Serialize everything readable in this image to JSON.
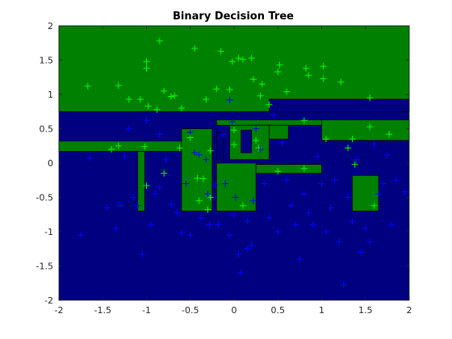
{
  "chart_data": {
    "type": "scatter",
    "title": "Binary Decision Tree",
    "xlabel": "",
    "ylabel": "",
    "xlim": [
      -2,
      2
    ],
    "ylim": [
      -2,
      2
    ],
    "xticks": [
      -2,
      -1.5,
      -1,
      -0.5,
      0,
      0.5,
      1,
      1.5,
      2
    ],
    "yticks": [
      -2,
      -1.5,
      -1,
      -0.5,
      0,
      0.5,
      1,
      1.5,
      2
    ],
    "xtick_labels": [
      "-2",
      "-1.5",
      "-1",
      "-0.5",
      "0",
      "0.5",
      "1",
      "1.5",
      "2"
    ],
    "ytick_labels": [
      "-2",
      "-1.5",
      "-1",
      "-0.5",
      "0",
      "0.5",
      "1",
      "1.5",
      "2"
    ],
    "grid": false,
    "colors": {
      "background_region": "#000080",
      "positive_region": "#008000",
      "region_edge": "#000000",
      "marker_blue": "#0000ff",
      "marker_green": "#00ff00"
    },
    "decision_regions": [
      {
        "class": "green",
        "x": [
          -2,
          2
        ],
        "y": [
          0.75,
          2
        ]
      },
      {
        "class": "blue",
        "x": [
          0.4,
          2
        ],
        "y": [
          0.75,
          0.93
        ]
      },
      {
        "class": "green",
        "x": [
          -2,
          -0.6
        ],
        "y": [
          0.17,
          0.32
        ]
      },
      {
        "class": "green",
        "x": [
          -0.6,
          -0.25
        ],
        "y": [
          -0.7,
          0.5
        ]
      },
      {
        "class": "green",
        "x": [
          -1.1,
          -1.02
        ],
        "y": [
          -0.7,
          0.17
        ]
      },
      {
        "class": "green",
        "x": [
          -0.2,
          2
        ],
        "y": [
          0.55,
          0.63
        ]
      },
      {
        "class": "green",
        "x": [
          0.4,
          0.62
        ],
        "y": [
          0.35,
          0.55
        ]
      },
      {
        "class": "green",
        "x": [
          -0.05,
          0.4
        ],
        "y": [
          0.05,
          0.55
        ]
      },
      {
        "class": "green",
        "x": [
          -0.2,
          0.25
        ],
        "y": [
          -0.7,
          0.0
        ]
      },
      {
        "class": "green",
        "x": [
          0.25,
          1.0
        ],
        "y": [
          -0.15,
          -0.02
        ]
      },
      {
        "class": "green",
        "x": [
          1.0,
          2
        ],
        "y": [
          0.33,
          0.63
        ]
      },
      {
        "class": "green",
        "x": [
          1.35,
          1.65
        ],
        "y": [
          -0.7,
          -0.18
        ]
      },
      {
        "class": "blue",
        "x": [
          -0.2,
          -0.12
        ],
        "y": [
          0.0,
          0.45
        ]
      },
      {
        "class": "blue",
        "x": [
          0.08,
          0.2
        ],
        "y": [
          0.15,
          0.48
        ]
      }
    ],
    "series": [
      {
        "marker": "+",
        "color": "#00ff00",
        "points": [
          [
            -1.67,
            1.12
          ],
          [
            -1.32,
            1.13
          ],
          [
            -1.2,
            0.93
          ],
          [
            -1.07,
            0.93
          ],
          [
            -0.85,
            1.78
          ],
          [
            -1.0,
            1.48
          ],
          [
            -1.0,
            1.38
          ],
          [
            -0.98,
            0.83
          ],
          [
            -0.88,
            0.78
          ],
          [
            -0.8,
            1.05
          ],
          [
            -0.72,
            0.97
          ],
          [
            -0.68,
            0.98
          ],
          [
            -0.6,
            0.8
          ],
          [
            -0.45,
            1.67
          ],
          [
            -0.32,
            0.93
          ],
          [
            -0.2,
            1.08
          ],
          [
            -0.15,
            1.63
          ],
          [
            -0.05,
            1.07
          ],
          [
            -0.02,
            1.48
          ],
          [
            0.05,
            1.53
          ],
          [
            0.1,
            1.51
          ],
          [
            0.2,
            1.53
          ],
          [
            0.22,
            1.22
          ],
          [
            0.3,
            0.98
          ],
          [
            0.32,
            1.15
          ],
          [
            0.4,
            0.85
          ],
          [
            0.5,
            1.33
          ],
          [
            0.52,
            1.43
          ],
          [
            0.6,
            1.04
          ],
          [
            0.82,
            1.38
          ],
          [
            0.85,
            1.28
          ],
          [
            1.02,
            1.41
          ],
          [
            1.02,
            1.23
          ],
          [
            1.22,
            1.18
          ],
          [
            1.55,
            0.95
          ],
          [
            -1.4,
            0.2
          ],
          [
            -1.32,
            0.25
          ],
          [
            -1.02,
            0.24
          ],
          [
            -1.0,
            -0.33
          ],
          [
            -0.8,
            -0.15
          ],
          [
            -0.62,
            0.22
          ],
          [
            -0.5,
            0.37
          ],
          [
            -0.42,
            -0.22
          ],
          [
            -0.4,
            -0.55
          ],
          [
            -0.35,
            -0.23
          ],
          [
            -0.3,
            -0.68
          ],
          [
            -0.27,
            0.18
          ],
          [
            -0.27,
            -0.5
          ],
          [
            0.0,
            0.48
          ],
          [
            0.0,
            0.27
          ],
          [
            0.1,
            -0.62
          ],
          [
            0.25,
            0.33
          ],
          [
            0.28,
            0.22
          ],
          [
            0.5,
            -0.12
          ],
          [
            0.8,
            0.62
          ],
          [
            0.8,
            -0.08
          ],
          [
            1.05,
            0.35
          ],
          [
            1.35,
            0.35
          ],
          [
            1.3,
            0.22
          ],
          [
            1.38,
            -0.02
          ],
          [
            1.55,
            0.53
          ],
          [
            1.6,
            -0.62
          ],
          [
            1.77,
            0.42
          ]
        ]
      },
      {
        "marker": "+",
        "color": "#0000ff",
        "points": [
          [
            -1.75,
            -1.05
          ],
          [
            -1.65,
            0.07
          ],
          [
            -1.45,
            -0.65
          ],
          [
            -1.35,
            -0.95
          ],
          [
            -1.3,
            -0.62
          ],
          [
            -1.25,
            0.1
          ],
          [
            -1.2,
            0.5
          ],
          [
            -1.15,
            -0.5
          ],
          [
            -1.1,
            -0.62
          ],
          [
            -1.05,
            -1.33
          ],
          [
            -1.0,
            0.62
          ],
          [
            -0.95,
            -0.9
          ],
          [
            -0.9,
            -0.45
          ],
          [
            -0.85,
            0.42
          ],
          [
            -0.85,
            -0.35
          ],
          [
            -0.78,
            0.05
          ],
          [
            -0.72,
            -0.6
          ],
          [
            -0.65,
            -0.72
          ],
          [
            -0.6,
            -1.02
          ],
          [
            -0.55,
            -0.3
          ],
          [
            -0.5,
            -1.05
          ],
          [
            -0.45,
            0.15
          ],
          [
            -0.4,
            0.12
          ],
          [
            -0.38,
            -0.8
          ],
          [
            -0.32,
            0.05
          ],
          [
            -0.3,
            -0.45
          ],
          [
            -0.28,
            -0.9
          ],
          [
            -0.22,
            -0.32
          ],
          [
            -0.18,
            -0.9
          ],
          [
            -0.12,
            0.42
          ],
          [
            -0.1,
            -0.3
          ],
          [
            -0.05,
            -1.05
          ],
          [
            -0.02,
            0.6
          ],
          [
            0.0,
            -0.75
          ],
          [
            0.02,
            -0.5
          ],
          [
            0.05,
            -1.33
          ],
          [
            0.08,
            -1.6
          ],
          [
            0.15,
            -0.85
          ],
          [
            0.2,
            -1.2
          ],
          [
            0.22,
            -0.55
          ],
          [
            0.3,
            0.2
          ],
          [
            0.35,
            -0.3
          ],
          [
            0.4,
            -0.8
          ],
          [
            0.45,
            0.7
          ],
          [
            0.5,
            -1.0
          ],
          [
            0.55,
            0.3
          ],
          [
            0.6,
            -0.25
          ],
          [
            0.65,
            -0.62
          ],
          [
            0.7,
            -0.9
          ],
          [
            0.75,
            -1.4
          ],
          [
            0.8,
            -0.45
          ],
          [
            0.85,
            -0.73
          ],
          [
            0.9,
            -0.9
          ],
          [
            0.95,
            0.1
          ],
          [
            1.0,
            -0.3
          ],
          [
            1.05,
            -1.0
          ],
          [
            1.1,
            -0.65
          ],
          [
            1.15,
            -0.25
          ],
          [
            1.2,
            -1.15
          ],
          [
            1.25,
            -1.78
          ],
          [
            1.3,
            -0.5
          ],
          [
            1.35,
            -0.85
          ],
          [
            1.4,
            0.05
          ],
          [
            1.45,
            -1.3
          ],
          [
            1.5,
            -0.95
          ],
          [
            1.55,
            -1.15
          ],
          [
            1.6,
            0.28
          ],
          [
            1.65,
            -0.45
          ],
          [
            1.7,
            -0.3
          ],
          [
            1.75,
            0.12
          ],
          [
            1.8,
            -0.9
          ],
          [
            1.85,
            -0.25
          ],
          [
            1.95,
            -0.42
          ],
          [
            0.15,
            -1.25
          ],
          [
            -0.05,
            0.92
          ],
          [
            0.25,
            0.5
          ],
          [
            -0.5,
            0.45
          ]
        ]
      }
    ]
  }
}
